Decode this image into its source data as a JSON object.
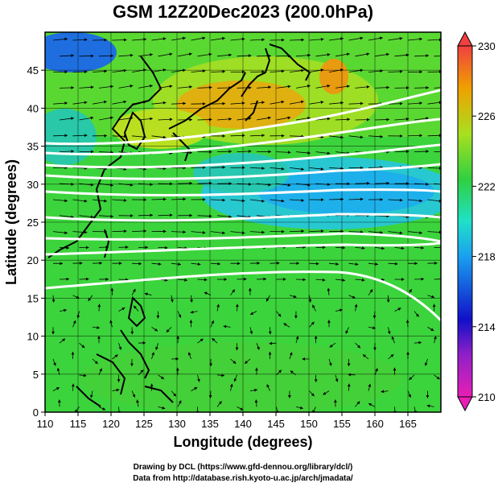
{
  "title": "GSM 12Z20Dec2023 (200.0hPa)",
  "xlabel": "Longitude (degrees)",
  "ylabel": "Latitude  (degrees)",
  "credits": [
    "Drawing by DCL (https://www.gfd-dennou.org/library/dcl/)",
    "Data from http://database.rish.kyoto-u.ac.jp/arch/jmadata/"
  ],
  "map": {
    "lon_range": [
      110,
      170
    ],
    "lat_range": [
      0,
      50
    ],
    "lon_ticks": [
      "110",
      "115",
      "120",
      "125",
      "130",
      "135",
      "140",
      "145",
      "150",
      "155",
      "160",
      "165"
    ],
    "lat_ticks": [
      "0",
      "5",
      "10",
      "15",
      "20",
      "25",
      "30",
      "35",
      "40",
      "45"
    ],
    "grid": true
  },
  "colorbar": {
    "range": [
      210,
      230
    ],
    "tick_labels": [
      "230",
      "226",
      "222",
      "218",
      "214",
      "210"
    ],
    "colors": [
      "#e81fb4",
      "#1010c8",
      "#1aa0f0",
      "#20e0c8",
      "#30d040",
      "#a8e020",
      "#f0a000",
      "#f04040"
    ]
  },
  "contour_color": "#ffffff",
  "vector_color": "#000000",
  "coastline_color": "#000000"
}
